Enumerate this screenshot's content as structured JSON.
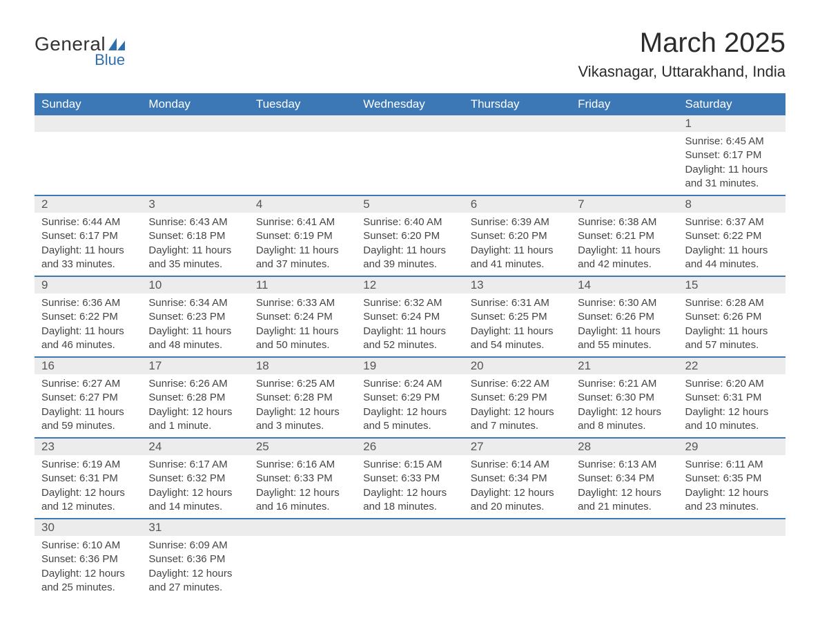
{
  "logo": {
    "text_top": "General",
    "text_bottom": "Blue",
    "shape_color": "#2f6fb0"
  },
  "title": "March 2025",
  "location": "Vikasnagar, Uttarakhand, India",
  "colors": {
    "header_bg": "#3b78b5",
    "header_text": "#ffffff",
    "row_divider": "#3b78b5",
    "daynum_bg": "#ececec",
    "text": "#3a3a3a"
  },
  "weekdays": [
    "Sunday",
    "Monday",
    "Tuesday",
    "Wednesday",
    "Thursday",
    "Friday",
    "Saturday"
  ],
  "weeks": [
    [
      {
        "empty": true
      },
      {
        "empty": true
      },
      {
        "empty": true
      },
      {
        "empty": true
      },
      {
        "empty": true
      },
      {
        "empty": true
      },
      {
        "day": "1",
        "sunrise": "Sunrise: 6:45 AM",
        "sunset": "Sunset: 6:17 PM",
        "daylight": "Daylight: 11 hours and 31 minutes."
      }
    ],
    [
      {
        "day": "2",
        "sunrise": "Sunrise: 6:44 AM",
        "sunset": "Sunset: 6:17 PM",
        "daylight": "Daylight: 11 hours and 33 minutes."
      },
      {
        "day": "3",
        "sunrise": "Sunrise: 6:43 AM",
        "sunset": "Sunset: 6:18 PM",
        "daylight": "Daylight: 11 hours and 35 minutes."
      },
      {
        "day": "4",
        "sunrise": "Sunrise: 6:41 AM",
        "sunset": "Sunset: 6:19 PM",
        "daylight": "Daylight: 11 hours and 37 minutes."
      },
      {
        "day": "5",
        "sunrise": "Sunrise: 6:40 AM",
        "sunset": "Sunset: 6:20 PM",
        "daylight": "Daylight: 11 hours and 39 minutes."
      },
      {
        "day": "6",
        "sunrise": "Sunrise: 6:39 AM",
        "sunset": "Sunset: 6:20 PM",
        "daylight": "Daylight: 11 hours and 41 minutes."
      },
      {
        "day": "7",
        "sunrise": "Sunrise: 6:38 AM",
        "sunset": "Sunset: 6:21 PM",
        "daylight": "Daylight: 11 hours and 42 minutes."
      },
      {
        "day": "8",
        "sunrise": "Sunrise: 6:37 AM",
        "sunset": "Sunset: 6:22 PM",
        "daylight": "Daylight: 11 hours and 44 minutes."
      }
    ],
    [
      {
        "day": "9",
        "sunrise": "Sunrise: 6:36 AM",
        "sunset": "Sunset: 6:22 PM",
        "daylight": "Daylight: 11 hours and 46 minutes."
      },
      {
        "day": "10",
        "sunrise": "Sunrise: 6:34 AM",
        "sunset": "Sunset: 6:23 PM",
        "daylight": "Daylight: 11 hours and 48 minutes."
      },
      {
        "day": "11",
        "sunrise": "Sunrise: 6:33 AM",
        "sunset": "Sunset: 6:24 PM",
        "daylight": "Daylight: 11 hours and 50 minutes."
      },
      {
        "day": "12",
        "sunrise": "Sunrise: 6:32 AM",
        "sunset": "Sunset: 6:24 PM",
        "daylight": "Daylight: 11 hours and 52 minutes."
      },
      {
        "day": "13",
        "sunrise": "Sunrise: 6:31 AM",
        "sunset": "Sunset: 6:25 PM",
        "daylight": "Daylight: 11 hours and 54 minutes."
      },
      {
        "day": "14",
        "sunrise": "Sunrise: 6:30 AM",
        "sunset": "Sunset: 6:26 PM",
        "daylight": "Daylight: 11 hours and 55 minutes."
      },
      {
        "day": "15",
        "sunrise": "Sunrise: 6:28 AM",
        "sunset": "Sunset: 6:26 PM",
        "daylight": "Daylight: 11 hours and 57 minutes."
      }
    ],
    [
      {
        "day": "16",
        "sunrise": "Sunrise: 6:27 AM",
        "sunset": "Sunset: 6:27 PM",
        "daylight": "Daylight: 11 hours and 59 minutes."
      },
      {
        "day": "17",
        "sunrise": "Sunrise: 6:26 AM",
        "sunset": "Sunset: 6:28 PM",
        "daylight": "Daylight: 12 hours and 1 minute."
      },
      {
        "day": "18",
        "sunrise": "Sunrise: 6:25 AM",
        "sunset": "Sunset: 6:28 PM",
        "daylight": "Daylight: 12 hours and 3 minutes."
      },
      {
        "day": "19",
        "sunrise": "Sunrise: 6:24 AM",
        "sunset": "Sunset: 6:29 PM",
        "daylight": "Daylight: 12 hours and 5 minutes."
      },
      {
        "day": "20",
        "sunrise": "Sunrise: 6:22 AM",
        "sunset": "Sunset: 6:29 PM",
        "daylight": "Daylight: 12 hours and 7 minutes."
      },
      {
        "day": "21",
        "sunrise": "Sunrise: 6:21 AM",
        "sunset": "Sunset: 6:30 PM",
        "daylight": "Daylight: 12 hours and 8 minutes."
      },
      {
        "day": "22",
        "sunrise": "Sunrise: 6:20 AM",
        "sunset": "Sunset: 6:31 PM",
        "daylight": "Daylight: 12 hours and 10 minutes."
      }
    ],
    [
      {
        "day": "23",
        "sunrise": "Sunrise: 6:19 AM",
        "sunset": "Sunset: 6:31 PM",
        "daylight": "Daylight: 12 hours and 12 minutes."
      },
      {
        "day": "24",
        "sunrise": "Sunrise: 6:17 AM",
        "sunset": "Sunset: 6:32 PM",
        "daylight": "Daylight: 12 hours and 14 minutes."
      },
      {
        "day": "25",
        "sunrise": "Sunrise: 6:16 AM",
        "sunset": "Sunset: 6:33 PM",
        "daylight": "Daylight: 12 hours and 16 minutes."
      },
      {
        "day": "26",
        "sunrise": "Sunrise: 6:15 AM",
        "sunset": "Sunset: 6:33 PM",
        "daylight": "Daylight: 12 hours and 18 minutes."
      },
      {
        "day": "27",
        "sunrise": "Sunrise: 6:14 AM",
        "sunset": "Sunset: 6:34 PM",
        "daylight": "Daylight: 12 hours and 20 minutes."
      },
      {
        "day": "28",
        "sunrise": "Sunrise: 6:13 AM",
        "sunset": "Sunset: 6:34 PM",
        "daylight": "Daylight: 12 hours and 21 minutes."
      },
      {
        "day": "29",
        "sunrise": "Sunrise: 6:11 AM",
        "sunset": "Sunset: 6:35 PM",
        "daylight": "Daylight: 12 hours and 23 minutes."
      }
    ],
    [
      {
        "day": "30",
        "sunrise": "Sunrise: 6:10 AM",
        "sunset": "Sunset: 6:36 PM",
        "daylight": "Daylight: 12 hours and 25 minutes."
      },
      {
        "day": "31",
        "sunrise": "Sunrise: 6:09 AM",
        "sunset": "Sunset: 6:36 PM",
        "daylight": "Daylight: 12 hours and 27 minutes."
      },
      {
        "empty": true
      },
      {
        "empty": true
      },
      {
        "empty": true
      },
      {
        "empty": true
      },
      {
        "empty": true
      }
    ]
  ]
}
